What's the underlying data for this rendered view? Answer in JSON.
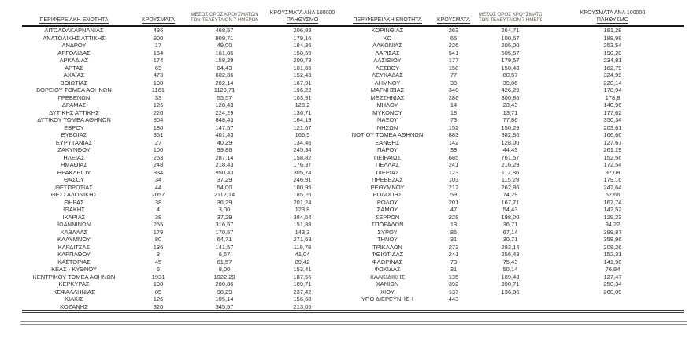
{
  "colors": {
    "text": "#2e2e2e",
    "header_text": "#33312c",
    "header_text_small": "#5c564e",
    "rule": "#1a1a1a",
    "bottom_line": "#3c3c3c",
    "footer_line": "#8f8f8f"
  },
  "table": {
    "headers": {
      "region": "ΠΕΡΙΦΕΡΕΙΑΚΗ ΕΝΟΤΗΤΑ",
      "cases": "ΚΡΟΥΣΜΑΤΑ",
      "avg7_line1": "ΜΕΣΟΣ ΟΡΟΣ ΚΡΟΥΣΜΑΤΩΝ",
      "avg7_line2": "ΤΩΝ ΤΕΛΕΥΤΑΙΩΝ 7 ΗΜΕΡΩΝ",
      "per100k_line1": "ΚΡΟΥΣΜΑΤΑ ΑΝΑ 100000",
      "per100k_line2": "ΠΛΗΘΥΣΜΟ"
    },
    "left_rows": [
      [
        "ΑΙΤΩΛΟΑΚΑΡΝΑΝΙΑΣ",
        "436",
        "468,57",
        "206,83"
      ],
      [
        "ΑΝΑΤΟΛΙΚΗΣ ΑΤΤΙΚΗΣ",
        "900",
        "909,71",
        "179,16"
      ],
      [
        "ΑΝΔΡΟΥ",
        "17",
        "49,00",
        "184,36"
      ],
      [
        "ΑΡΓΟΛΙΔΑΣ",
        "154",
        "161,86",
        "158,69"
      ],
      [
        "ΑΡΚΑΔΙΑΣ",
        "174",
        "158,29",
        "200,73"
      ],
      [
        "ΑΡΤΑΣ",
        "69",
        "84,43",
        "101,65"
      ],
      [
        "ΑΧΑΪΑΣ",
        "473",
        "602,86",
        "152,43"
      ],
      [
        "ΒΟΙΩΤΙΑΣ",
        "198",
        "202,14",
        "167,91"
      ],
      [
        "ΒΟΡΕΙΟΥ ΤΟΜΕΑ ΑΘΗΝΩΝ",
        "1161",
        "1129,71",
        "196,22"
      ],
      [
        "ΓΡΕΒΕΝΩΝ",
        "33",
        "55,57",
        "103,91"
      ],
      [
        "ΔΡΑΜΑΣ",
        "126",
        "128,43",
        "128,2"
      ],
      [
        "ΔΥΤΙΚΗΣ ΑΤΤΙΚΗΣ",
        "220",
        "224,29",
        "136,71"
      ],
      [
        "ΔΥΤΙΚΟΥ ΤΟΜΕΑ ΑΘΗΝΩΝ",
        "804",
        "848,43",
        "164,19"
      ],
      [
        "ΕΒΡΟΥ",
        "180",
        "147,57",
        "121,67"
      ],
      [
        "ΕΥΒΟΙΑΣ",
        "351",
        "401,43",
        "166,5"
      ],
      [
        "ΕΥΡΥΤΑΝΙΑΣ",
        "27",
        "40,29",
        "134,46"
      ],
      [
        "ΖΑΚΥΝΘΟΥ",
        "100",
        "99,86",
        "245,34"
      ],
      [
        "ΗΛΕΙΑΣ",
        "253",
        "287,14",
        "158,82"
      ],
      [
        "ΗΜΑΘΙΑΣ",
        "248",
        "218,43",
        "176,37"
      ],
      [
        "ΗΡΑΚΛΕΙΟΥ",
        "934",
        "950,43",
        "305,74"
      ],
      [
        "ΘΑΣΟΥ",
        "34",
        "37,29",
        "246,91"
      ],
      [
        "ΘΕΣΠΡΩΤΙΑΣ",
        "44",
        "54,00",
        "100,95"
      ],
      [
        "ΘΕΣΣΑΛΟΝΙΚΗΣ",
        "2057",
        "2112,14",
        "185,26"
      ],
      [
        "ΘΗΡΑΣ",
        "38",
        "36,29",
        "201,24"
      ],
      [
        "ΙΘΑΚΗΣ",
        "4",
        "3,00",
        "123,8"
      ],
      [
        "ΙΚΑΡΙΑΣ",
        "38",
        "37,29",
        "384,54"
      ],
      [
        "ΙΩΑΝΝΙΝΩΝ",
        "255",
        "316,57",
        "151,88"
      ],
      [
        "ΚΑΒΑΛΑΣ",
        "179",
        "170,57",
        "143,3"
      ],
      [
        "ΚΑΛΥΜΝΟΥ",
        "80",
        "64,71",
        "271,63"
      ],
      [
        "ΚΑΡΔΙΤΣΑΣ",
        "136",
        "141,57",
        "119,78"
      ],
      [
        "ΚΑΡΠΑΘΟΥ",
        "3",
        "6,57",
        "41,04"
      ],
      [
        "ΚΑΣΤΟΡΙΑΣ",
        "45",
        "61,57",
        "89,42"
      ],
      [
        "ΚΕΑΣ - ΚΥΘΝΟΥ",
        "6",
        "8,00",
        "153,41"
      ],
      [
        "ΚΕΝΤΡΙΚΟΥ ΤΟΜΕΑ ΑΘΗΝΩΝ",
        "1931",
        "1922,29",
        "187,56"
      ],
      [
        "ΚΕΡΚΥΡΑΣ",
        "198",
        "200,86",
        "189,71"
      ],
      [
        "ΚΕΦΑΛΛΗΝΙΑΣ",
        "85",
        "98,29",
        "237,42"
      ],
      [
        "ΚΙΛΚΙΣ",
        "126",
        "105,14",
        "156,68"
      ],
      [
        "ΚΟΖΑΝΗΣ",
        "320",
        "345,57",
        "213,05"
      ]
    ],
    "right_rows": [
      [
        "ΚΟΡΙΝΘΙΑΣ",
        "263",
        "264,71",
        "181,28"
      ],
      [
        "ΚΩ",
        "65",
        "100,57",
        "188,98"
      ],
      [
        "ΛΑΚΩΝΙΑΣ",
        "226",
        "205,00",
        "253,54"
      ],
      [
        "ΛΑΡΙΣΑΣ",
        "541",
        "505,57",
        "190,28"
      ],
      [
        "ΛΑΣΙΘΙΟΥ",
        "177",
        "179,57",
        "234,81"
      ],
      [
        "ΛΕΣΒΟΥ",
        "158",
        "150,43",
        "182,79"
      ],
      [
        "ΛΕΥΚΑΔΑΣ",
        "77",
        "80,57",
        "324,99"
      ],
      [
        "ΛΗΜΝΟΥ",
        "38",
        "39,86",
        "220,14"
      ],
      [
        "ΜΑΓΝΗΣΙΑΣ",
        "340",
        "426,29",
        "178,94"
      ],
      [
        "ΜΕΣΣΗΝΙΑΣ",
        "286",
        "300,86",
        "178,8"
      ],
      [
        "ΜΗΛΟΥ",
        "14",
        "23,43",
        "140,96"
      ],
      [
        "ΜΥΚΟΝΟΥ",
        "18",
        "13,71",
        "177,62"
      ],
      [
        "ΝΑΞΟΥ",
        "73",
        "77,86",
        "350,34"
      ],
      [
        "ΝΗΣΩΝ",
        "152",
        "150,29",
        "203,61"
      ],
      [
        "ΝΟΤΙΟΥ ΤΟΜΕΑ ΑΘΗΝΩΝ",
        "883",
        "882,86",
        "166,66"
      ],
      [
        "ΞΑΝΘΗΣ",
        "142",
        "128,00",
        "127,67"
      ],
      [
        "ΠΑΡΟΥ",
        "39",
        "44,43",
        "261,29"
      ],
      [
        "ΠΕΙΡΑΙΩΣ",
        "685",
        "761,57",
        "152,56"
      ],
      [
        "ΠΕΛΛΑΣ",
        "241",
        "216,29",
        "172,54"
      ],
      [
        "ΠΙΕΡΙΑΣ",
        "123",
        "112,86",
        "97,08"
      ],
      [
        "ΠΡΕΒΕΖΑΣ",
        "103",
        "115,29",
        "179,16"
      ],
      [
        "ΡΕΘΥΜΝΟΥ",
        "212",
        "262,86",
        "247,64"
      ],
      [
        "ΡΟΔΟΠΗΣ",
        "59",
        "74,29",
        "52,66"
      ],
      [
        "ΡΟΔΟΥ",
        "201",
        "167,71",
        "167,74"
      ],
      [
        "ΣΑΜΟΥ",
        "47",
        "54,43",
        "142,52"
      ],
      [
        "ΣΕΡΡΩΝ",
        "228",
        "198,00",
        "129,23"
      ],
      [
        "ΣΠΟΡΑΔΩΝ",
        "13",
        "36,71",
        "94,22"
      ],
      [
        "ΣΥΡΟΥ",
        "86",
        "67,14",
        "399,87"
      ],
      [
        "ΤΗΝΟΥ",
        "31",
        "30,71",
        "358,96"
      ],
      [
        "ΤΡΙΚΑΛΩΝ",
        "273",
        "283,14",
        "208,26"
      ],
      [
        "ΦΘΙΩΤΙΔΑΣ",
        "241",
        "256,43",
        "152,31"
      ],
      [
        "ΦΛΩΡΙΝΑΣ",
        "73",
        "75,43",
        "141,98"
      ],
      [
        "ΦΩΚΙΔΑΣ",
        "31",
        "50,14",
        "76,84"
      ],
      [
        "ΧΑΛΚΙΔΙΚΗΣ",
        "135",
        "189,43",
        "127,47"
      ],
      [
        "ΧΑΝΙΩΝ",
        "392",
        "390,71",
        "250,34"
      ],
      [
        "ΧΙΟΥ",
        "137",
        "136,86",
        "260,09"
      ],
      [
        "ΥΠΟ ΔΙΕΡΕΥΝΗΣΗ",
        "443",
        "",
        ""
      ]
    ]
  }
}
